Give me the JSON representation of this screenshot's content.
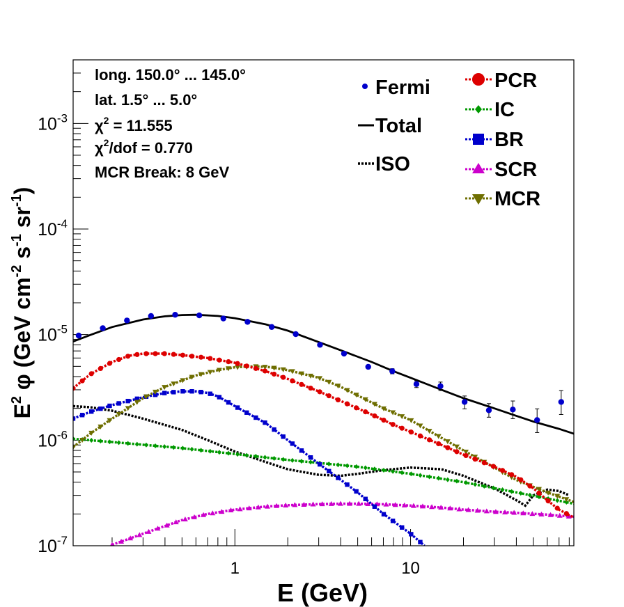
{
  "colors": {
    "fermi": "#0000cc",
    "total": "#000000",
    "iso": "#000000",
    "pcr": "#dd0000",
    "ic": "#009900",
    "br": "#0000cc",
    "scr": "#cc00cc",
    "mcr": "#6e6e00"
  },
  "info": {
    "line1": "long. 150.0° ... 145.0°",
    "line2": "lat. 1.5° ... 5.0°",
    "chi_base": "χ",
    "chi_sup": "2",
    "chi_val": " = 11.555",
    "chidof_sup": "2",
    "chidof_val": "/dof = 0.770",
    "line5": "MCR Break:  8 GeV"
  },
  "axis_labels": {
    "x": "E (GeV)",
    "y_e": "E",
    "y_e_sup": "2",
    "y_phi": " φ (GeV cm",
    "y_cm_sup": "-2",
    "y_s": " s",
    "y_s_sup": "-1",
    "y_sr": " sr",
    "y_sr_sup": "-1",
    "y_close": ")"
  },
  "legend": {
    "fermi": "Fermi",
    "total": "Total",
    "iso": "ISO",
    "pcr": "PCR",
    "ic": "IC",
    "br": "BR",
    "scr": "SCR",
    "mcr": "MCR"
  },
  "chart_data": {
    "type": "line",
    "xscale": "log",
    "yscale": "log",
    "xlim": [
      0.12,
      85
    ],
    "ylim": [
      1e-07,
      0.004
    ],
    "xticks": [
      {
        "value": 1,
        "label": "1"
      },
      {
        "value": 10,
        "label": "10"
      }
    ],
    "yticks": [
      {
        "value": 1e-07,
        "base": "10",
        "exp": "-7"
      },
      {
        "value": 1e-06,
        "base": "10",
        "exp": "-6"
      },
      {
        "value": 1e-05,
        "base": "10",
        "exp": "-5"
      },
      {
        "value": 0.0001,
        "base": "10",
        "exp": "-4"
      },
      {
        "value": 0.001,
        "base": "10",
        "exp": "-3"
      }
    ],
    "fermi": {
      "x": [
        0.129,
        0.177,
        0.243,
        0.333,
        0.457,
        0.627,
        0.86,
        1.18,
        1.62,
        2.22,
        3.05,
        4.18,
        5.74,
        7.87,
        10.8,
        14.8,
        20.3,
        27.9,
        38.2,
        52.5,
        72.0
      ],
      "y": [
        9.8e-06,
        1.15e-05,
        1.36e-05,
        1.5e-05,
        1.54e-05,
        1.52e-05,
        1.42e-05,
        1.32e-05,
        1.18e-05,
        1.01e-05,
        8e-06,
        6.6e-06,
        4.95e-06,
        4.5e-06,
        3.4e-06,
        3.25e-06,
        2.3e-06,
        1.92e-06,
        1.95e-06,
        1.55e-06,
        2.3e-06
      ],
      "err_lo": [
        9.6e-06,
        1.13e-05,
        1.34e-05,
        1.48e-05,
        1.52e-05,
        1.5e-05,
        1.4e-05,
        1.3e-05,
        1.16e-05,
        9.9e-06,
        7.8e-06,
        6.4e-06,
        4.8e-06,
        4.25e-06,
        3.15e-06,
        2.95e-06,
        1.98e-06,
        1.65e-06,
        1.6e-06,
        1.18e-06,
        1.75e-06
      ],
      "err_hi": [
        1e-05,
        1.17e-05,
        1.38e-05,
        1.52e-05,
        1.56e-05,
        1.54e-05,
        1.44e-05,
        1.34e-05,
        1.2e-05,
        1.03e-05,
        8.2e-06,
        6.8e-06,
        5.1e-06,
        4.75e-06,
        3.65e-06,
        3.55e-06,
        2.62e-06,
        2.22e-06,
        2.35e-06,
        1.98e-06,
        2.95e-06
      ]
    },
    "series": [
      {
        "key": "total",
        "name": "Total",
        "style": "solid",
        "x": [
          0.12,
          0.15,
          0.2,
          0.3,
          0.4,
          0.5,
          0.6,
          0.8,
          1,
          1.5,
          2,
          3,
          4,
          6,
          8,
          10,
          15,
          20,
          30,
          40,
          50,
          70,
          85
        ],
        "y": [
          8.6e-06,
          9.9e-06,
          1.18e-05,
          1.39e-05,
          1.49e-05,
          1.53e-05,
          1.54e-05,
          1.5e-05,
          1.43e-05,
          1.25e-05,
          1.09e-05,
          8.5e-06,
          7.1e-06,
          5.5e-06,
          4.5e-06,
          3.9e-06,
          3e-06,
          2.5e-06,
          2e-06,
          1.7e-06,
          1.5e-06,
          1.28e-06,
          1.15e-06
        ]
      },
      {
        "key": "iso",
        "name": "ISO",
        "style": "dotted",
        "x": [
          0.12,
          0.15,
          0.2,
          0.3,
          0.5,
          0.7,
          1,
          1.5,
          2,
          3,
          4,
          5,
          7,
          10,
          15,
          20,
          30,
          40,
          45,
          50,
          60,
          70,
          80
        ],
        "y": [
          2.1e-06,
          2.05e-06,
          1.9e-06,
          1.6e-06,
          1.25e-06,
          1e-06,
          7.8e-07,
          6.2e-07,
          5.3e-07,
          4.7e-07,
          4.6e-07,
          4.8e-07,
          5.2e-07,
          5.5e-07,
          5.3e-07,
          4.6e-07,
          3.5e-07,
          2.7e-07,
          2.4e-07,
          3e-07,
          3.4e-07,
          3.3e-07,
          3e-07
        ]
      },
      {
        "key": "pcr",
        "name": "PCR",
        "style": "dotted",
        "marker": "circle",
        "x": [
          0.12,
          0.15,
          0.2,
          0.25,
          0.3,
          0.4,
          0.5,
          0.7,
          1,
          1.5,
          2,
          3,
          4,
          6,
          8,
          10,
          15,
          20,
          30,
          40,
          50,
          60,
          70,
          85
        ],
        "y": [
          3.1e-06,
          4.2e-06,
          5.5e-06,
          6.3e-06,
          6.6e-06,
          6.6e-06,
          6.4e-06,
          6e-06,
          5.4e-06,
          4.5e-06,
          3.8e-06,
          2.9e-06,
          2.35e-06,
          1.75e-06,
          1.4e-06,
          1.2e-06,
          9e-07,
          7.3e-07,
          5.6e-07,
          4.5e-07,
          3.5e-07,
          2.7e-07,
          2.2e-07,
          1.85e-07
        ]
      },
      {
        "key": "ic",
        "name": "IC",
        "style": "dotted",
        "marker": "diamond",
        "x": [
          0.12,
          0.2,
          0.5,
          1,
          2,
          5,
          10,
          20,
          40,
          85
        ],
        "y": [
          1.03e-06,
          9.6e-07,
          8.4e-07,
          7.4e-07,
          6.5e-07,
          5.6e-07,
          4.8e-07,
          4e-07,
          3.2e-07,
          2.5e-07
        ]
      },
      {
        "key": "br",
        "name": "BR",
        "style": "dotted",
        "marker": "square",
        "x": [
          0.12,
          0.15,
          0.2,
          0.3,
          0.4,
          0.5,
          0.6,
          0.7,
          0.8,
          1,
          1.5,
          2,
          3,
          5,
          7,
          10,
          12
        ],
        "y": [
          1.6e-06,
          1.85e-06,
          2.15e-06,
          2.55e-06,
          2.8e-06,
          2.9e-06,
          2.9e-06,
          2.8e-06,
          2.6e-06,
          2.1e-06,
          1.45e-06,
          1e-06,
          6e-07,
          3.2e-07,
          2e-07,
          1.3e-07,
          1e-07
        ]
      },
      {
        "key": "scr",
        "name": "SCR",
        "style": "dotted",
        "marker": "triangle-up",
        "x": [
          0.2,
          0.3,
          0.5,
          0.7,
          1,
          1.5,
          2,
          3,
          4,
          5,
          7,
          10,
          15,
          20,
          30,
          40,
          60,
          85
        ],
        "y": [
          1.02e-07,
          1.3e-07,
          1.75e-07,
          2e-07,
          2.2e-07,
          2.35e-07,
          2.42e-07,
          2.48e-07,
          2.5e-07,
          2.5e-07,
          2.47e-07,
          2.4e-07,
          2.3e-07,
          2.2e-07,
          2.1e-07,
          2.05e-07,
          1.97e-07,
          1.88e-07
        ]
      },
      {
        "key": "mcr",
        "name": "MCR",
        "style": "dotted",
        "marker": "triangle-down",
        "x": [
          0.12,
          0.15,
          0.2,
          0.3,
          0.4,
          0.6,
          0.8,
          1,
          1.3,
          1.6,
          2,
          3,
          4,
          5,
          7,
          10,
          15,
          20,
          30,
          40,
          60,
          85
        ],
        "y": [
          8.6e-07,
          1.15e-06,
          1.6e-06,
          2.5e-06,
          3.2e-06,
          4.1e-06,
          4.6e-06,
          4.9e-06,
          5e-06,
          4.9e-06,
          4.6e-06,
          3.9e-06,
          3.2e-06,
          2.65e-06,
          2e-06,
          1.55e-06,
          1.05e-06,
          8e-07,
          5.5e-07,
          4.2e-07,
          3.2e-07,
          2.6e-07
        ]
      }
    ]
  }
}
